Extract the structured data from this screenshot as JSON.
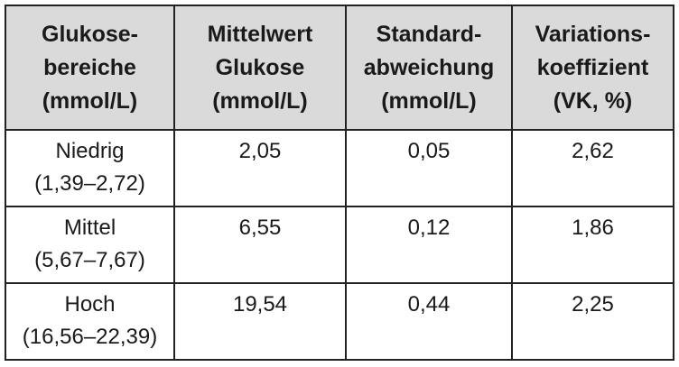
{
  "table": {
    "header": [
      [
        "Glukose-",
        "bereiche",
        "(mmol/L)"
      ],
      [
        "Mittelwert",
        "Glukose",
        "(mmol/L)"
      ],
      [
        "Standard-",
        "abweichung",
        "(mmol/L)"
      ],
      [
        "Variations-",
        "koeffizient",
        "(VK, %)"
      ]
    ],
    "rows": [
      [
        [
          "Niedrig",
          "(1,39–2,72)"
        ],
        "2,05",
        "0,05",
        "2,62"
      ],
      [
        [
          "Mittel",
          "(5,67–7,67)"
        ],
        "6,55",
        "0,12",
        "1,86"
      ],
      [
        [
          "Hoch",
          "(16,56–22,39)"
        ],
        "19,54",
        "0,44",
        "2,25"
      ]
    ]
  }
}
